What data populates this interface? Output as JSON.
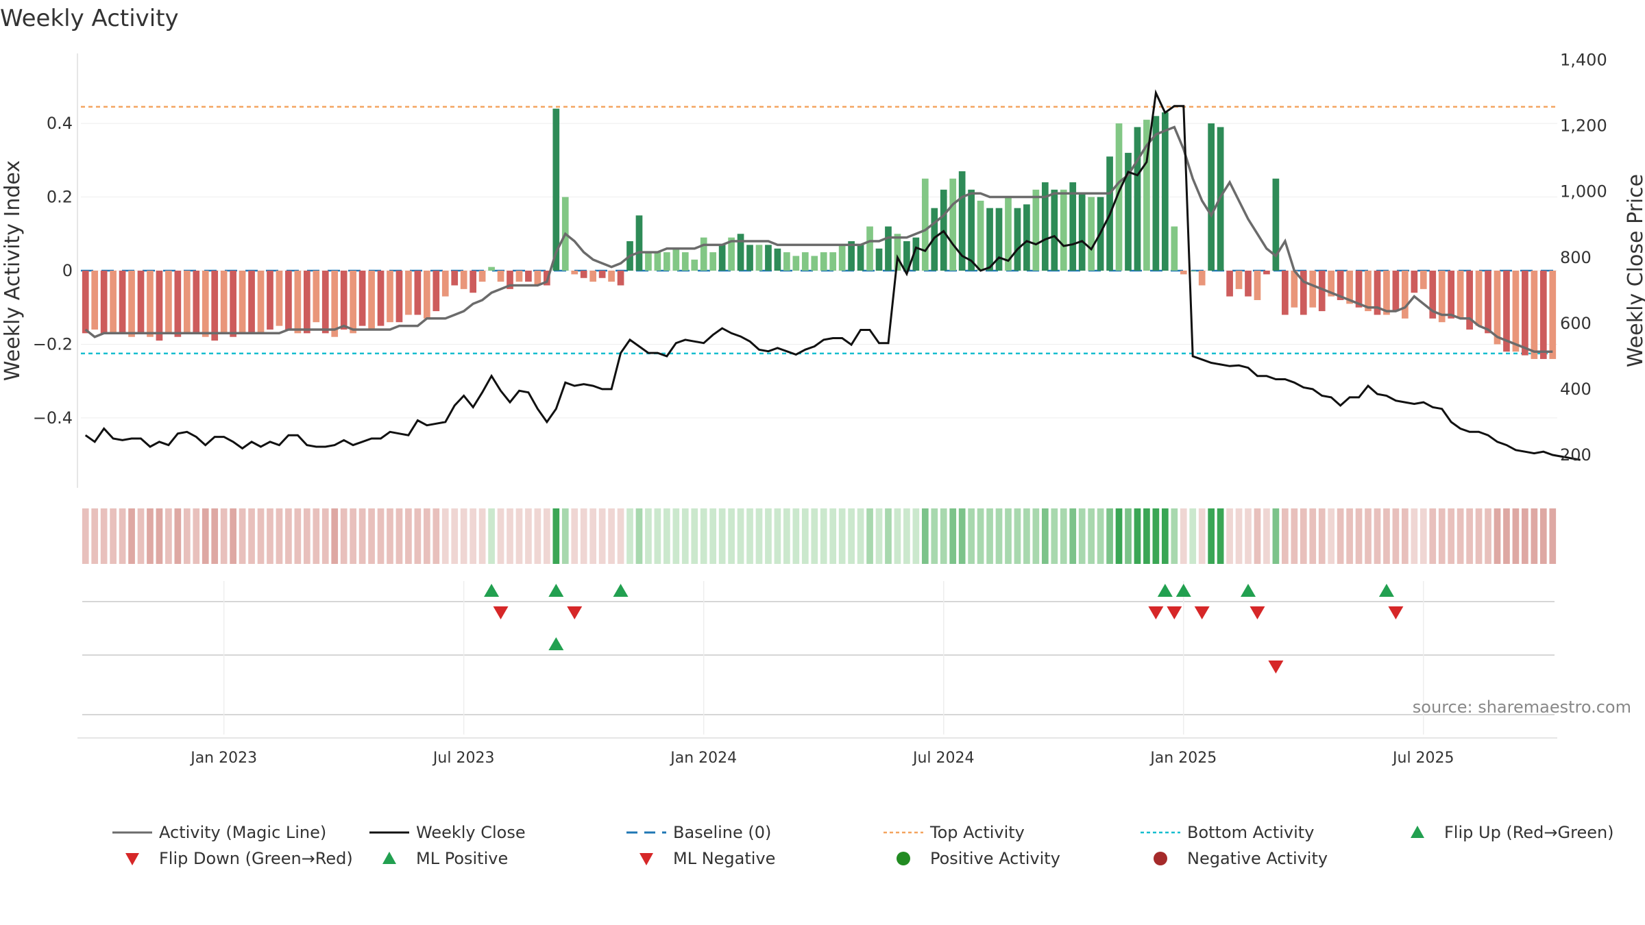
{
  "chart_data": {
    "type": "bar",
    "title": "Weekly Activity",
    "ylabel": "Weekly Activity Index",
    "y2label": "Weekly Close Price",
    "source": "source: sharemaestro.com",
    "ylim": [
      -0.59,
      0.59
    ],
    "y2lim": [
      100,
      1420
    ],
    "yticks": [
      {
        "value": 0.4,
        "label": "0.4"
      },
      {
        "value": 0.2,
        "label": "0.2"
      },
      {
        "value": 0,
        "label": "0"
      },
      {
        "value": -0.2,
        "label": "−0.2"
      },
      {
        "value": -0.4,
        "label": "−0.4"
      }
    ],
    "y2ticks": [
      {
        "value": 1400,
        "label": "1,400"
      },
      {
        "value": 1200,
        "label": "1,200"
      },
      {
        "value": 1000,
        "label": "1,000"
      },
      {
        "value": 800,
        "label": "800"
      },
      {
        "value": 600,
        "label": "600"
      },
      {
        "value": 400,
        "label": "400"
      },
      {
        "value": 200,
        "label": "200"
      }
    ],
    "xticks": [
      {
        "week": 15,
        "label": "Jan 2023"
      },
      {
        "week": 41,
        "label": "Jul 2023"
      },
      {
        "week": 67,
        "label": "Jan 2024"
      },
      {
        "week": 93,
        "label": "Jul 2024"
      },
      {
        "week": 119,
        "label": "Jan 2025"
      },
      {
        "week": 145,
        "label": "Jul 2025"
      }
    ],
    "top_activity": 0.445,
    "bottom_activity": -0.225,
    "baseline": 0,
    "colors": {
      "strong_green": "#2e8b57",
      "light_green": "#82c785",
      "strong_red": "#cd5c5c",
      "light_red": "#e9967a",
      "magic_line": "#6b6b6b",
      "close_line": "#111111",
      "baseline": "#1f77b4",
      "top": "#f4a460",
      "bottom": "#17becf",
      "marker_green": "#22a050",
      "marker_red": "#d62728",
      "pos_dot": "#228b22",
      "neg_dot": "#a52a2a"
    },
    "activity": [
      -0.17,
      -0.16,
      -0.17,
      -0.17,
      -0.17,
      -0.18,
      -0.17,
      -0.18,
      -0.19,
      -0.17,
      -0.18,
      -0.17,
      -0.17,
      -0.18,
      -0.19,
      -0.17,
      -0.18,
      -0.17,
      -0.17,
      -0.17,
      -0.16,
      -0.15,
      -0.16,
      -0.17,
      -0.17,
      -0.14,
      -0.17,
      -0.18,
      -0.16,
      -0.17,
      -0.15,
      -0.16,
      -0.15,
      -0.14,
      -0.14,
      -0.12,
      -0.12,
      -0.13,
      -0.11,
      -0.07,
      -0.04,
      -0.05,
      -0.06,
      -0.03,
      0.01,
      -0.03,
      -0.05,
      -0.03,
      -0.03,
      -0.04,
      -0.04,
      0.44,
      0.2,
      -0.01,
      -0.02,
      -0.03,
      -0.02,
      -0.03,
      -0.04,
      0.08,
      0.15,
      0.05,
      0.05,
      0.05,
      0.06,
      0.05,
      0.03,
      0.09,
      0.05,
      0.07,
      0.09,
      0.1,
      0.07,
      0.07,
      0.07,
      0.06,
      0.05,
      0.04,
      0.05,
      0.04,
      0.05,
      0.05,
      0.07,
      0.08,
      0.07,
      0.12,
      0.06,
      0.12,
      0.1,
      0.08,
      0.09,
      0.25,
      0.17,
      0.22,
      0.25,
      0.27,
      0.22,
      0.19,
      0.17,
      0.17,
      0.2,
      0.17,
      0.18,
      0.22,
      0.24,
      0.22,
      0.22,
      0.24,
      0.21,
      0.2,
      0.2,
      0.31,
      0.4,
      0.32,
      0.39,
      0.41,
      0.42,
      0.43,
      0.12,
      -0.01,
      0.0,
      -0.04,
      0.4,
      0.39,
      -0.07,
      -0.05,
      -0.07,
      -0.08,
      -0.01,
      0.25,
      -0.12,
      -0.1,
      -0.12,
      -0.1,
      -0.11,
      -0.07,
      -0.08,
      -0.09,
      -0.1,
      -0.11,
      -0.12,
      -0.12,
      -0.11,
      -0.13,
      -0.06,
      -0.05,
      -0.13,
      -0.14,
      -0.13,
      -0.13,
      -0.16,
      -0.15,
      -0.17,
      -0.2,
      -0.22,
      -0.22,
      -0.23,
      -0.24,
      -0.24,
      -0.24
    ],
    "magic_line": [
      -0.16,
      -0.18,
      -0.17,
      -0.17,
      -0.17,
      -0.17,
      -0.17,
      -0.17,
      -0.17,
      -0.17,
      -0.17,
      -0.17,
      -0.17,
      -0.17,
      -0.17,
      -0.17,
      -0.17,
      -0.17,
      -0.17,
      -0.17,
      -0.17,
      -0.17,
      -0.16,
      -0.16,
      -0.16,
      -0.16,
      -0.16,
      -0.16,
      -0.15,
      -0.16,
      -0.16,
      -0.16,
      -0.16,
      -0.16,
      -0.15,
      -0.15,
      -0.15,
      -0.13,
      -0.13,
      -0.13,
      -0.12,
      -0.11,
      -0.09,
      -0.08,
      -0.06,
      -0.05,
      -0.04,
      -0.04,
      -0.04,
      -0.04,
      -0.03,
      0.05,
      0.1,
      0.08,
      0.05,
      0.03,
      0.02,
      0.01,
      0.02,
      0.04,
      0.05,
      0.05,
      0.05,
      0.06,
      0.06,
      0.06,
      0.06,
      0.07,
      0.07,
      0.07,
      0.08,
      0.08,
      0.08,
      0.08,
      0.08,
      0.07,
      0.07,
      0.07,
      0.07,
      0.07,
      0.07,
      0.07,
      0.07,
      0.07,
      0.07,
      0.08,
      0.08,
      0.09,
      0.09,
      0.09,
      0.1,
      0.11,
      0.13,
      0.15,
      0.18,
      0.2,
      0.21,
      0.21,
      0.2,
      0.2,
      0.2,
      0.2,
      0.2,
      0.2,
      0.2,
      0.21,
      0.21,
      0.21,
      0.21,
      0.21,
      0.21,
      0.21,
      0.24,
      0.26,
      0.3,
      0.34,
      0.37,
      0.38,
      0.39,
      0.33,
      0.25,
      0.19,
      0.15,
      0.2,
      0.24,
      0.19,
      0.14,
      0.1,
      0.06,
      0.04,
      0.08,
      0.0,
      -0.03,
      -0.04,
      -0.05,
      -0.06,
      -0.07,
      -0.08,
      -0.09,
      -0.1,
      -0.1,
      -0.11,
      -0.11,
      -0.1,
      -0.07,
      -0.09,
      -0.11,
      -0.12,
      -0.12,
      -0.13,
      -0.13,
      -0.15,
      -0.16,
      -0.18,
      -0.19,
      -0.2,
      -0.21,
      -0.22,
      -0.22,
      -0.22
    ],
    "weekly_close": [
      260,
      240,
      280,
      250,
      245,
      250,
      250,
      225,
      240,
      230,
      265,
      270,
      255,
      230,
      255,
      255,
      240,
      220,
      240,
      225,
      240,
      230,
      260,
      260,
      230,
      225,
      225,
      230,
      245,
      230,
      240,
      250,
      250,
      270,
      265,
      260,
      305,
      290,
      295,
      300,
      350,
      380,
      345,
      390,
      440,
      395,
      360,
      395,
      390,
      340,
      300,
      340,
      420,
      410,
      415,
      410,
      400,
      400,
      510,
      550,
      530,
      510,
      510,
      500,
      540,
      550,
      545,
      540,
      565,
      585,
      570,
      560,
      545,
      520,
      515,
      525,
      515,
      505,
      520,
      530,
      550,
      555,
      555,
      535,
      580,
      580,
      540,
      540,
      800,
      750,
      830,
      820,
      860,
      880,
      840,
      805,
      790,
      760,
      770,
      800,
      790,
      825,
      850,
      840,
      855,
      865,
      835,
      840,
      850,
      825,
      875,
      930,
      1000,
      1060,
      1050,
      1090,
      1300,
      1240,
      1260,
      1260,
      500,
      490,
      480,
      475,
      470,
      472,
      465,
      440,
      440,
      430,
      430,
      420,
      405,
      400,
      380,
      375,
      350,
      375,
      375,
      410,
      385,
      380,
      365,
      360,
      355,
      360,
      345,
      340,
      300,
      280,
      270,
      270,
      260,
      240,
      230,
      215,
      210,
      205,
      210,
      200,
      195,
      190,
      185
    ]
  },
  "strips": {
    "row1_up": [
      44,
      51,
      58,
      117,
      119,
      126,
      141
    ],
    "row1_down": [
      45,
      53,
      116,
      118,
      121,
      127,
      142
    ],
    "row2_up": [
      51
    ],
    "row2_down": [
      129
    ]
  },
  "legend": [
    {
      "label": "Activity (Magic Line)",
      "icon": "gray-line-icon"
    },
    {
      "label": "Weekly Close",
      "icon": "black-line-icon"
    },
    {
      "label": "Baseline (0)",
      "icon": "dashed-blue-line-icon"
    },
    {
      "label": "Top Activity",
      "icon": "dotted-orange-line-icon"
    },
    {
      "label": "Bottom Activity",
      "icon": "dotted-cyan-line-icon"
    },
    {
      "label": "Flip Up (Red→Green)",
      "icon": "green-up-triangle-icon"
    },
    {
      "label": "Flip Down (Green→Red)",
      "icon": "red-down-triangle-icon"
    },
    {
      "label": "ML Positive",
      "icon": "green-up-triangle-icon"
    },
    {
      "label": "ML Negative",
      "icon": "red-down-triangle-icon"
    },
    {
      "label": "Positive Activity",
      "icon": "green-dot-icon"
    },
    {
      "label": "Negative Activity",
      "icon": "dark-red-dot-icon"
    }
  ]
}
